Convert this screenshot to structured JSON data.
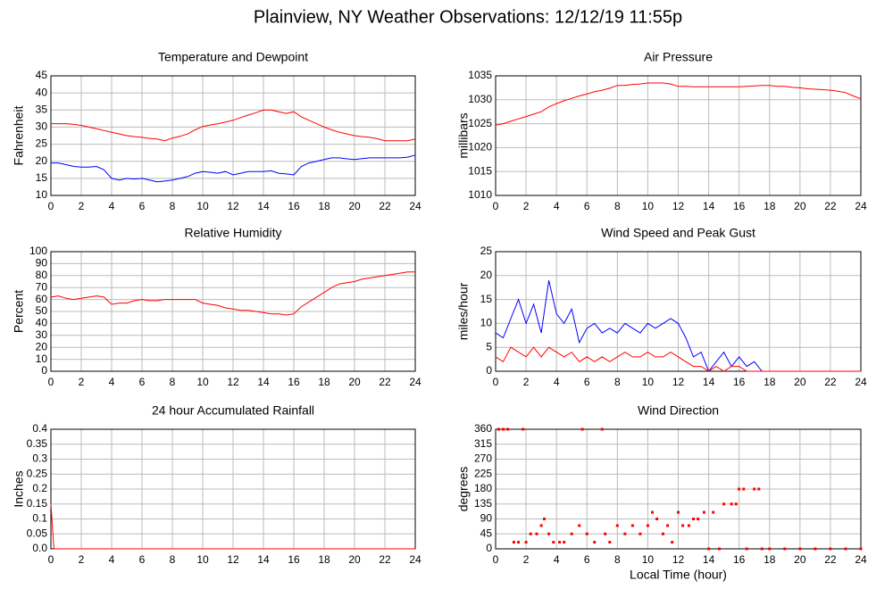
{
  "title": "Plainview, NY Weather Observations: 12/12/19 11:55p",
  "chart_data": [
    {
      "type": "line",
      "title": "Temperature and Dewpoint",
      "ylabel": "Fahrenheit",
      "x": [
        0,
        0.5,
        1,
        1.5,
        2,
        2.5,
        3,
        3.5,
        4,
        4.5,
        5,
        5.5,
        6,
        6.5,
        7,
        7.5,
        8,
        8.5,
        9,
        9.5,
        10,
        10.5,
        11,
        11.5,
        12,
        12.5,
        13,
        13.5,
        14,
        14.5,
        15,
        15.5,
        16,
        16.5,
        17,
        17.5,
        18,
        18.5,
        19,
        19.5,
        20,
        20.5,
        21,
        21.5,
        22,
        22.5,
        23,
        23.5,
        24
      ],
      "series": [
        {
          "color": "#ff0000",
          "values": [
            31,
            31,
            31,
            30.8,
            30.5,
            30,
            29.5,
            29,
            28.5,
            28,
            27.5,
            27.2,
            27,
            26.7,
            26.5,
            26,
            26.8,
            27.3,
            28,
            29.2,
            30.2,
            30.6,
            31,
            31.5,
            32,
            32.8,
            33.5,
            34.2,
            35,
            35,
            34.5,
            34,
            34.5,
            33,
            32,
            31,
            30,
            29.2,
            28.5,
            28,
            27.5,
            27.2,
            27,
            26.6,
            26,
            26,
            26,
            26,
            26.5
          ]
        },
        {
          "color": "#0000ff",
          "values": [
            19.5,
            19.5,
            19,
            18.5,
            18.3,
            18.3,
            18.5,
            17.5,
            15,
            14.5,
            15,
            14.8,
            15,
            14.5,
            14,
            14.2,
            14.5,
            15,
            15.5,
            16.5,
            17,
            16.8,
            16.5,
            17,
            16,
            16.5,
            17,
            17,
            17,
            17.2,
            16.5,
            16.3,
            16,
            18.5,
            19.5,
            20,
            20.5,
            21,
            21,
            20.7,
            20.5,
            20.8,
            21,
            21,
            21,
            21,
            21,
            21.2,
            21.8
          ]
        }
      ],
      "xlim": [
        0,
        24
      ],
      "xticks": [
        0,
        2,
        4,
        6,
        8,
        10,
        12,
        14,
        16,
        18,
        20,
        22,
        24
      ],
      "ylim": [
        10,
        45
      ],
      "yticks": [
        10,
        15,
        20,
        25,
        30,
        35,
        40,
        45
      ],
      "grid": true
    },
    {
      "type": "line",
      "title": "Air Pressure",
      "ylabel": "millibars",
      "x": [
        0,
        0.5,
        1,
        1.5,
        2,
        2.5,
        3,
        3.5,
        4,
        4.5,
        5,
        5.5,
        6,
        6.5,
        7,
        7.5,
        8,
        8.5,
        9,
        9.5,
        10,
        10.5,
        11,
        11.5,
        12,
        12.5,
        13,
        13.5,
        14,
        14.5,
        15,
        15.5,
        16,
        16.5,
        17,
        17.5,
        18,
        18.5,
        19,
        19.5,
        20,
        20.5,
        21,
        21.5,
        22,
        22.5,
        23,
        23.5,
        24
      ],
      "series": [
        {
          "color": "#ff0000",
          "values": [
            1024.7,
            1025,
            1025.5,
            1026,
            1026.5,
            1027,
            1027.5,
            1028.5,
            1029.2,
            1029.8,
            1030.3,
            1030.8,
            1031.2,
            1031.7,
            1032,
            1032.4,
            1033,
            1033,
            1033.2,
            1033.3,
            1033.5,
            1033.5,
            1033.5,
            1033.3,
            1032.8,
            1032.8,
            1032.7,
            1032.7,
            1032.7,
            1032.7,
            1032.7,
            1032.7,
            1032.7,
            1032.8,
            1032.9,
            1033,
            1033,
            1032.8,
            1032.8,
            1032.6,
            1032.5,
            1032.3,
            1032.2,
            1032.1,
            1032,
            1031.8,
            1031.5,
            1030.8,
            1030.2
          ]
        }
      ],
      "xlim": [
        0,
        24
      ],
      "xticks": [
        0,
        2,
        4,
        6,
        8,
        10,
        12,
        14,
        16,
        18,
        20,
        22,
        24
      ],
      "ylim": [
        1010,
        1035
      ],
      "yticks": [
        1010,
        1015,
        1020,
        1025,
        1030,
        1035
      ],
      "grid": true
    },
    {
      "type": "line",
      "title": "Relative Humidity",
      "ylabel": "Percent",
      "x": [
        0,
        0.5,
        1,
        1.5,
        2,
        2.5,
        3,
        3.5,
        4,
        4.5,
        5,
        5.5,
        6,
        6.5,
        7,
        7.5,
        8,
        8.5,
        9,
        9.5,
        10,
        10.5,
        11,
        11.5,
        12,
        12.5,
        13,
        13.5,
        14,
        14.5,
        15,
        15.5,
        16,
        16.5,
        17,
        17.5,
        18,
        18.5,
        19,
        19.5,
        20,
        20.5,
        21,
        21.5,
        22,
        22.5,
        23,
        23.5,
        24
      ],
      "series": [
        {
          "color": "#ff0000",
          "values": [
            62,
            63,
            61,
            60,
            61,
            62,
            63,
            62,
            56,
            57,
            57,
            59,
            60,
            59,
            59,
            60,
            60,
            60,
            60,
            60,
            57,
            56,
            55,
            53,
            52,
            51,
            51,
            50,
            49,
            48,
            48,
            47,
            48,
            54,
            58,
            62,
            66,
            70,
            73,
            74,
            75,
            77,
            78,
            79,
            80,
            81,
            82,
            83,
            83
          ]
        }
      ],
      "xlim": [
        0,
        24
      ],
      "xticks": [
        0,
        2,
        4,
        6,
        8,
        10,
        12,
        14,
        16,
        18,
        20,
        22,
        24
      ],
      "ylim": [
        0,
        100
      ],
      "yticks": [
        0,
        10,
        20,
        30,
        40,
        50,
        60,
        70,
        80,
        90,
        100
      ],
      "grid": true
    },
    {
      "type": "line",
      "title": "Wind Speed and Peak Gust",
      "ylabel": "miles/hour",
      "x": [
        0,
        0.5,
        1,
        1.5,
        2,
        2.5,
        3,
        3.5,
        4,
        4.5,
        5,
        5.5,
        6,
        6.5,
        7,
        7.5,
        8,
        8.5,
        9,
        9.5,
        10,
        10.5,
        11,
        11.5,
        12,
        12.5,
        13,
        13.5,
        14,
        14.5,
        15,
        15.5,
        16,
        16.5,
        17,
        17.5,
        18,
        18.5,
        19,
        19.5,
        20,
        20.5,
        21,
        21.5,
        22,
        22.5,
        23,
        23.5,
        24
      ],
      "series": [
        {
          "color": "#0000ff",
          "values": [
            8,
            7,
            11,
            15,
            10,
            14,
            8,
            19,
            12,
            10,
            13,
            6,
            9,
            10,
            8,
            9,
            8,
            10,
            9,
            8,
            10,
            9,
            10,
            11,
            10,
            7,
            3,
            4,
            0,
            2,
            4,
            1,
            3,
            1,
            2,
            0,
            0,
            0,
            0,
            0,
            0,
            0,
            0,
            0,
            0,
            0,
            0,
            0,
            0
          ]
        },
        {
          "color": "#ff0000",
          "values": [
            3,
            2,
            5,
            4,
            3,
            5,
            3,
            5,
            4,
            3,
            4,
            2,
            3,
            2,
            3,
            2,
            3,
            4,
            3,
            3,
            4,
            3,
            3,
            4,
            3,
            2,
            1,
            1,
            0,
            1,
            0,
            1,
            1,
            0,
            0,
            0,
            0,
            0,
            0,
            0,
            0,
            0,
            0,
            0,
            0,
            0,
            0,
            0,
            0
          ]
        }
      ],
      "xlim": [
        0,
        24
      ],
      "xticks": [
        0,
        2,
        4,
        6,
        8,
        10,
        12,
        14,
        16,
        18,
        20,
        22,
        24
      ],
      "ylim": [
        0,
        25
      ],
      "yticks": [
        0,
        5,
        10,
        15,
        20,
        25
      ],
      "grid": true
    },
    {
      "type": "line",
      "title": "24 hour Accumulated Rainfall",
      "ylabel": "Inches",
      "x": [
        0,
        0.2,
        24
      ],
      "values": [
        0.15,
        0,
        0
      ],
      "color": "#ff0000",
      "xlim": [
        0,
        24
      ],
      "xticks": [
        0,
        2,
        4,
        6,
        8,
        10,
        12,
        14,
        16,
        18,
        20,
        22,
        24
      ],
      "ylim": [
        0,
        0.4
      ],
      "yticks": [
        {
          "value": 0,
          "label": "0.0"
        },
        0.05,
        0.1,
        0.15,
        0.2,
        0.25,
        0.3,
        0.35,
        0.4
      ],
      "grid": true
    },
    {
      "type": "scatter",
      "title": "Wind Direction",
      "ylabel": "degrees",
      "xlabel": "Local Time (hour)",
      "x": [
        0.2,
        0.5,
        0.8,
        1.2,
        1.5,
        1.8,
        2,
        2.3,
        2.7,
        3,
        3.2,
        3.5,
        3.8,
        4.2,
        4.5,
        5,
        5.5,
        5.7,
        6,
        6.5,
        7,
        7.2,
        7.5,
        8,
        8.5,
        9,
        9.5,
        10,
        10.3,
        10.6,
        11,
        11.3,
        11.6,
        12,
        12.3,
        12.7,
        13,
        13.3,
        13.7,
        14,
        14.3,
        14.7,
        15,
        15.5,
        15.8,
        16,
        16.3,
        16.5,
        17,
        17.3,
        17.5,
        18,
        19,
        20,
        21,
        22,
        23,
        24
      ],
      "values": [
        360,
        360,
        360,
        20,
        20,
        360,
        20,
        45,
        45,
        70,
        90,
        45,
        20,
        20,
        20,
        45,
        70,
        360,
        45,
        20,
        360,
        45,
        20,
        70,
        45,
        70,
        45,
        70,
        110,
        90,
        45,
        70,
        20,
        110,
        70,
        70,
        90,
        90,
        110,
        0,
        110,
        0,
        135,
        135,
        135,
        180,
        180,
        0,
        180,
        180,
        0,
        0,
        0,
        0,
        0,
        0,
        0,
        0
      ],
      "color": "#ff0000",
      "xlim": [
        0,
        24
      ],
      "xticks": [
        0,
        2,
        4,
        6,
        8,
        10,
        12,
        14,
        16,
        18,
        20,
        22,
        24
      ],
      "ylim": [
        0,
        360
      ],
      "yticks": [
        0,
        45,
        90,
        135,
        180,
        225,
        270,
        315,
        360
      ],
      "grid": true
    }
  ]
}
